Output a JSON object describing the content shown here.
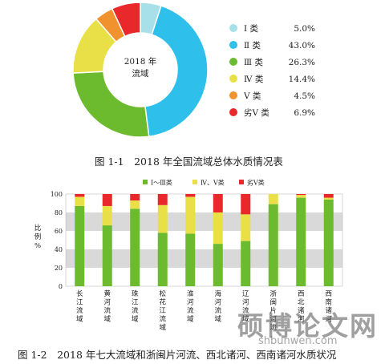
{
  "chart_data": [
    {
      "type": "pie",
      "center_label": [
        "2018 年",
        "流域"
      ],
      "slices": [
        {
          "label": "Ⅰ 类",
          "value": 5.0,
          "value_label": "5.0%",
          "color": "#a8e0ea"
        },
        {
          "label": "Ⅱ 类",
          "value": 43.0,
          "value_label": "43.0%",
          "color": "#2ec0ea"
        },
        {
          "label": "Ⅲ 类",
          "value": 26.3,
          "value_label": "26.3%",
          "color": "#6cbb2e"
        },
        {
          "label": "Ⅳ 类",
          "value": 14.4,
          "value_label": "14.4%",
          "color": "#e8e046"
        },
        {
          "label": "Ⅴ 类",
          "value": 4.5,
          "value_label": "4.5%",
          "color": "#f0922e"
        },
        {
          "label": "劣Ⅴ 类",
          "value": 6.9,
          "value_label": "6.9%",
          "color": "#e8282a"
        }
      ],
      "legend_position": "right"
    },
    {
      "type": "bar",
      "stacked": true,
      "ylabel": "比例 %",
      "ylim": [
        0,
        100
      ],
      "yticks": [
        0,
        20,
        40,
        60,
        80,
        100
      ],
      "legend_position": "top",
      "categories": [
        "长江流域",
        "黄河流域",
        "珠江流域",
        "松花江流域",
        "淮河流域",
        "海河流域",
        "辽河流域",
        "浙闽片河流",
        "西北诸河",
        "西南诸河"
      ],
      "series": [
        {
          "name": "Ⅰ～Ⅲ类",
          "color": "#6cbb2e",
          "values": [
            87,
            66,
            84,
            58,
            57,
            46,
            49,
            89,
            96,
            94
          ]
        },
        {
          "name": "Ⅳ、Ⅴ类",
          "color": "#e8e046",
          "values": [
            10,
            21,
            9,
            30,
            40,
            34,
            29,
            11,
            3,
            2
          ]
        },
        {
          "name": "劣Ⅴ类",
          "color": "#e8282a",
          "values": [
            3,
            13,
            7,
            12,
            3,
            20,
            22,
            0,
            1,
            4
          ]
        }
      ]
    }
  ],
  "captions": {
    "fig1": "图 1-1　2018 年全国流域总体水质情况表",
    "fig2": "图 1-2　2018 年七大流域和浙闽片河流、西北诸河、西南诸河水质状况"
  },
  "watermark": {
    "main": "硕博论文网",
    "sub": "shbunwen.com"
  }
}
